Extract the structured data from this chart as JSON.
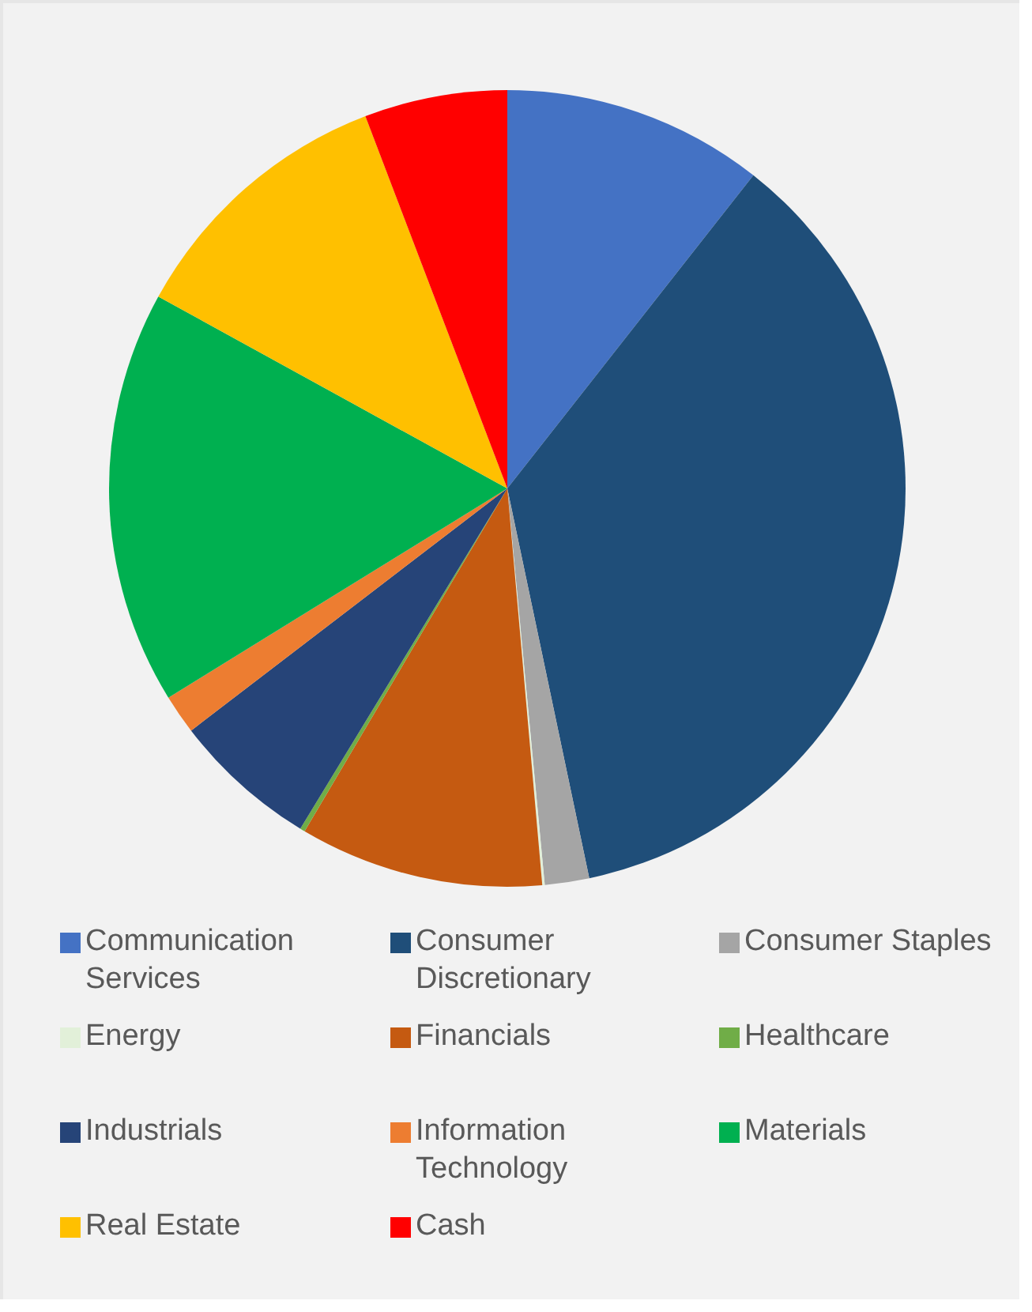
{
  "chart_data": {
    "type": "pie",
    "categories": [
      "Communication Services",
      "Consumer Discretionary",
      "Consumer Staples",
      "Energy",
      "Financials",
      "Healthcare",
      "Industrials",
      "Information Technology",
      "Materials",
      "Real Estate",
      "Cash"
    ],
    "values": [
      10.6,
      36.1,
      1.8,
      0.1,
      9.9,
      0.2,
      5.9,
      1.6,
      16.8,
      11.2,
      5.8
    ],
    "colors": [
      "#4472c4",
      "#1f4e79",
      "#a5a5a5",
      "#e2f0d9",
      "#c55a11",
      "#70ad47",
      "#264478",
      "#ed7d31",
      "#00b050",
      "#ffc000",
      "#ff0000"
    ],
    "legend": "bottom"
  }
}
